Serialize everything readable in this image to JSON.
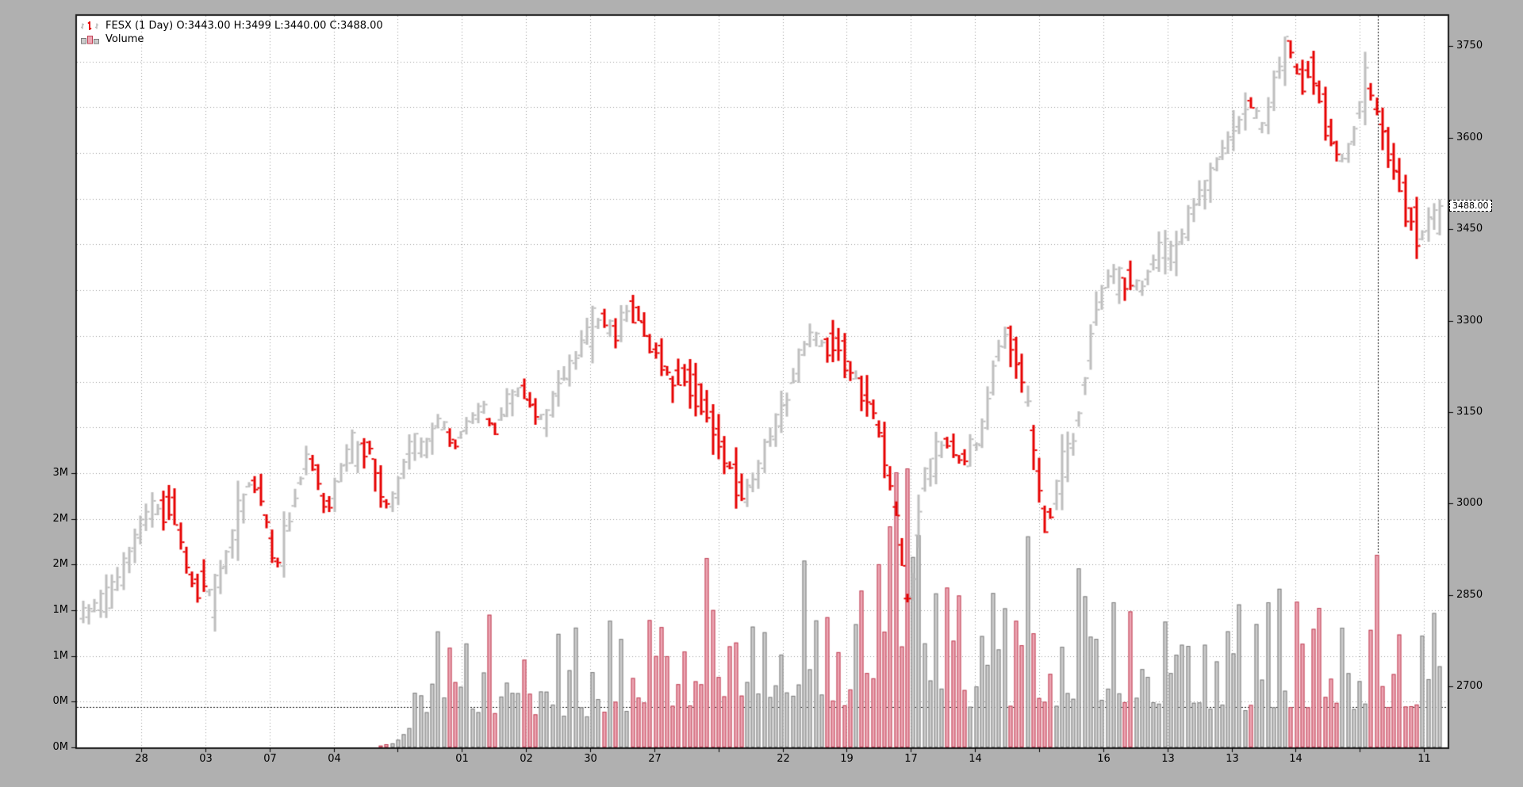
{
  "legend": {
    "series_label": "FESX (1 Day) O:3443.00 H:3499 L:3440.00 C:3488.00",
    "volume_label": "Volume"
  },
  "last_price_tag": "3488.00",
  "chart_data": {
    "type": "ohlc-bar+volume",
    "title": "FESX (1 Day)",
    "last_bar_ohlc": {
      "open": 3443.0,
      "high": 3499,
      "low": 3440.0,
      "close": 3488.0
    },
    "price_axis": {
      "side": "right",
      "ticks": [
        3750,
        3600,
        3450,
        3300,
        3150,
        3000,
        2850,
        2700
      ],
      "ylim": [
        2600,
        3800
      ]
    },
    "volume_axis": {
      "side": "left",
      "ticks": [
        {
          "label": "0M",
          "millions": 0.0
        },
        {
          "label": "0M",
          "millions": 0.5
        },
        {
          "label": "1M",
          "millions": 1.0
        },
        {
          "label": "1M",
          "millions": 1.5
        },
        {
          "label": "2M",
          "millions": 2.0
        },
        {
          "label": "2M",
          "millions": 2.5
        },
        {
          "label": "3M",
          "millions": 3.0
        }
      ],
      "ylim_millions": [
        0,
        8
      ],
      "grid_step_millions": 0.5
    },
    "x_axis": {
      "tick_labels": [
        "28",
        "03",
        "07",
        "04",
        "",
        "01",
        "02",
        "30",
        "27",
        "",
        "22",
        "19",
        "17",
        "14",
        "",
        "16",
        "13",
        "13",
        "14",
        "",
        "11"
      ],
      "first_frac": 0.046875,
      "step_frac": 0.046792
    },
    "reference_lines": {
      "horizontal_volume_millions": 0.44,
      "vertical_x_frac": 0.9491
    },
    "bars": {
      "count": 238,
      "seed": 11
    },
    "price_path_anchors": [
      [
        0.004,
        2820
      ],
      [
        0.012,
        2838
      ],
      [
        0.02,
        2845
      ],
      [
        0.03,
        2890
      ],
      [
        0.04,
        2950
      ],
      [
        0.05,
        2990
      ],
      [
        0.058,
        2985
      ],
      [
        0.066,
        3002
      ],
      [
        0.075,
        2915
      ],
      [
        0.083,
        2855
      ],
      [
        0.089,
        2878
      ],
      [
        0.096,
        2840
      ],
      [
        0.105,
        2905
      ],
      [
        0.112,
        2960
      ],
      [
        0.124,
        3040
      ],
      [
        0.132,
        3010
      ],
      [
        0.142,
        2895
      ],
      [
        0.15,
        2945
      ],
      [
        0.158,
        3020
      ],
      [
        0.165,
        3072
      ],
      [
        0.172,
        3058
      ],
      [
        0.179,
        2985
      ],
      [
        0.187,
        3030
      ],
      [
        0.197,
        3095
      ],
      [
        0.204,
        3075
      ],
      [
        0.21,
        3103
      ],
      [
        0.217,
        3047
      ],
      [
        0.225,
        2992
      ],
      [
        0.232,
        3025
      ],
      [
        0.242,
        3103
      ],
      [
        0.252,
        3087
      ],
      [
        0.263,
        3140
      ],
      [
        0.273,
        3095
      ],
      [
        0.285,
        3135
      ],
      [
        0.295,
        3158
      ],
      [
        0.303,
        3118
      ],
      [
        0.313,
        3165
      ],
      [
        0.323,
        3190
      ],
      [
        0.331,
        3158
      ],
      [
        0.341,
        3134
      ],
      [
        0.352,
        3197
      ],
      [
        0.362,
        3230
      ],
      [
        0.373,
        3285
      ],
      [
        0.384,
        3302
      ],
      [
        0.392,
        3278
      ],
      [
        0.401,
        3309
      ],
      [
        0.408,
        3318
      ],
      [
        0.418,
        3260
      ],
      [
        0.427,
        3237
      ],
      [
        0.435,
        3197
      ],
      [
        0.442,
        3214
      ],
      [
        0.45,
        3190
      ],
      [
        0.458,
        3166
      ],
      [
        0.468,
        3110
      ],
      [
        0.479,
        3047
      ],
      [
        0.488,
        3010
      ],
      [
        0.497,
        3047
      ],
      [
        0.507,
        3110
      ],
      [
        0.518,
        3158
      ],
      [
        0.528,
        3237
      ],
      [
        0.538,
        3280
      ],
      [
        0.547,
        3253
      ],
      [
        0.555,
        3270
      ],
      [
        0.564,
        3230
      ],
      [
        0.573,
        3190
      ],
      [
        0.582,
        3158
      ],
      [
        0.59,
        3095
      ],
      [
        0.599,
        2990
      ],
      [
        0.606,
        2870
      ],
      [
        0.61,
        2805
      ],
      [
        0.614,
        2930
      ],
      [
        0.62,
        3040
      ],
      [
        0.63,
        3078
      ],
      [
        0.638,
        3103
      ],
      [
        0.647,
        3070
      ],
      [
        0.656,
        3087
      ],
      [
        0.665,
        3126
      ],
      [
        0.674,
        3245
      ],
      [
        0.682,
        3278
      ],
      [
        0.69,
        3237
      ],
      [
        0.697,
        3158
      ],
      [
        0.704,
        3047
      ],
      [
        0.71,
        2955
      ],
      [
        0.717,
        3016
      ],
      [
        0.723,
        3062
      ],
      [
        0.728,
        3078
      ],
      [
        0.733,
        3126
      ],
      [
        0.74,
        3222
      ],
      [
        0.746,
        3301
      ],
      [
        0.752,
        3349
      ],
      [
        0.759,
        3380
      ],
      [
        0.766,
        3357
      ],
      [
        0.773,
        3372
      ],
      [
        0.78,
        3349
      ],
      [
        0.789,
        3396
      ],
      [
        0.798,
        3420
      ],
      [
        0.805,
        3405
      ],
      [
        0.814,
        3459
      ],
      [
        0.822,
        3500
      ],
      [
        0.831,
        3531
      ],
      [
        0.838,
        3571
      ],
      [
        0.846,
        3594
      ],
      [
        0.853,
        3627
      ],
      [
        0.86,
        3658
      ],
      [
        0.866,
        3634
      ],
      [
        0.871,
        3611
      ],
      [
        0.878,
        3682
      ],
      [
        0.885,
        3738
      ],
      [
        0.89,
        3752
      ],
      [
        0.895,
        3706
      ],
      [
        0.9,
        3690
      ],
      [
        0.906,
        3721
      ],
      [
        0.913,
        3658
      ],
      [
        0.92,
        3603
      ],
      [
        0.928,
        3563
      ],
      [
        0.935,
        3586
      ],
      [
        0.941,
        3650
      ],
      [
        0.947,
        3692
      ],
      [
        0.954,
        3642
      ],
      [
        0.961,
        3594
      ],
      [
        0.968,
        3548
      ],
      [
        0.975,
        3492
      ],
      [
        0.982,
        3459
      ],
      [
        0.987,
        3438
      ],
      [
        0.993,
        3465
      ],
      [
        1.0,
        3488
      ]
    ],
    "volume_anchors_millions": [
      [
        0,
        0
      ],
      [
        0.21,
        0
      ],
      [
        0.225,
        0.05
      ],
      [
        0.24,
        0.3
      ],
      [
        0.255,
        0.7
      ],
      [
        0.27,
        0.95
      ],
      [
        0.3,
        0.9
      ],
      [
        0.33,
        0.8
      ],
      [
        0.36,
        0.78
      ],
      [
        0.39,
        0.85
      ],
      [
        0.42,
        0.95
      ],
      [
        0.45,
        1.0
      ],
      [
        0.47,
        1.1
      ],
      [
        0.5,
        0.9
      ],
      [
        0.53,
        0.95
      ],
      [
        0.56,
        1.0
      ],
      [
        0.58,
        1.15
      ],
      [
        0.595,
        1.6
      ],
      [
        0.605,
        2.4
      ],
      [
        0.615,
        1.7
      ],
      [
        0.63,
        1.15
      ],
      [
        0.66,
        1.0
      ],
      [
        0.68,
        1.1
      ],
      [
        0.7,
        1.0
      ],
      [
        0.72,
        1.05
      ],
      [
        0.735,
        1.25
      ],
      [
        0.75,
        1.1
      ],
      [
        0.77,
        1.0
      ],
      [
        0.8,
        0.95
      ],
      [
        0.83,
        1.0
      ],
      [
        0.86,
        0.95
      ],
      [
        0.89,
        1.05
      ],
      [
        0.92,
        0.95
      ],
      [
        0.95,
        1.0
      ],
      [
        0.975,
        1.05
      ],
      [
        1.0,
        1.1
      ]
    ],
    "colors": {
      "frame_background": "#b0b0b0",
      "plot_background": "#ffffff",
      "grid": "#9e9e9e",
      "border": "#1a1a1a",
      "reference_line": "#111111",
      "bar_up": "#bebebe",
      "bar_down": "#e60000",
      "volume_up_fill": "#cccccc",
      "volume_up_stroke": "#7d7d7d",
      "volume_down_fill": "#eca7b4",
      "volume_down_stroke": "#bf4054",
      "axis_text": "#000000"
    }
  }
}
